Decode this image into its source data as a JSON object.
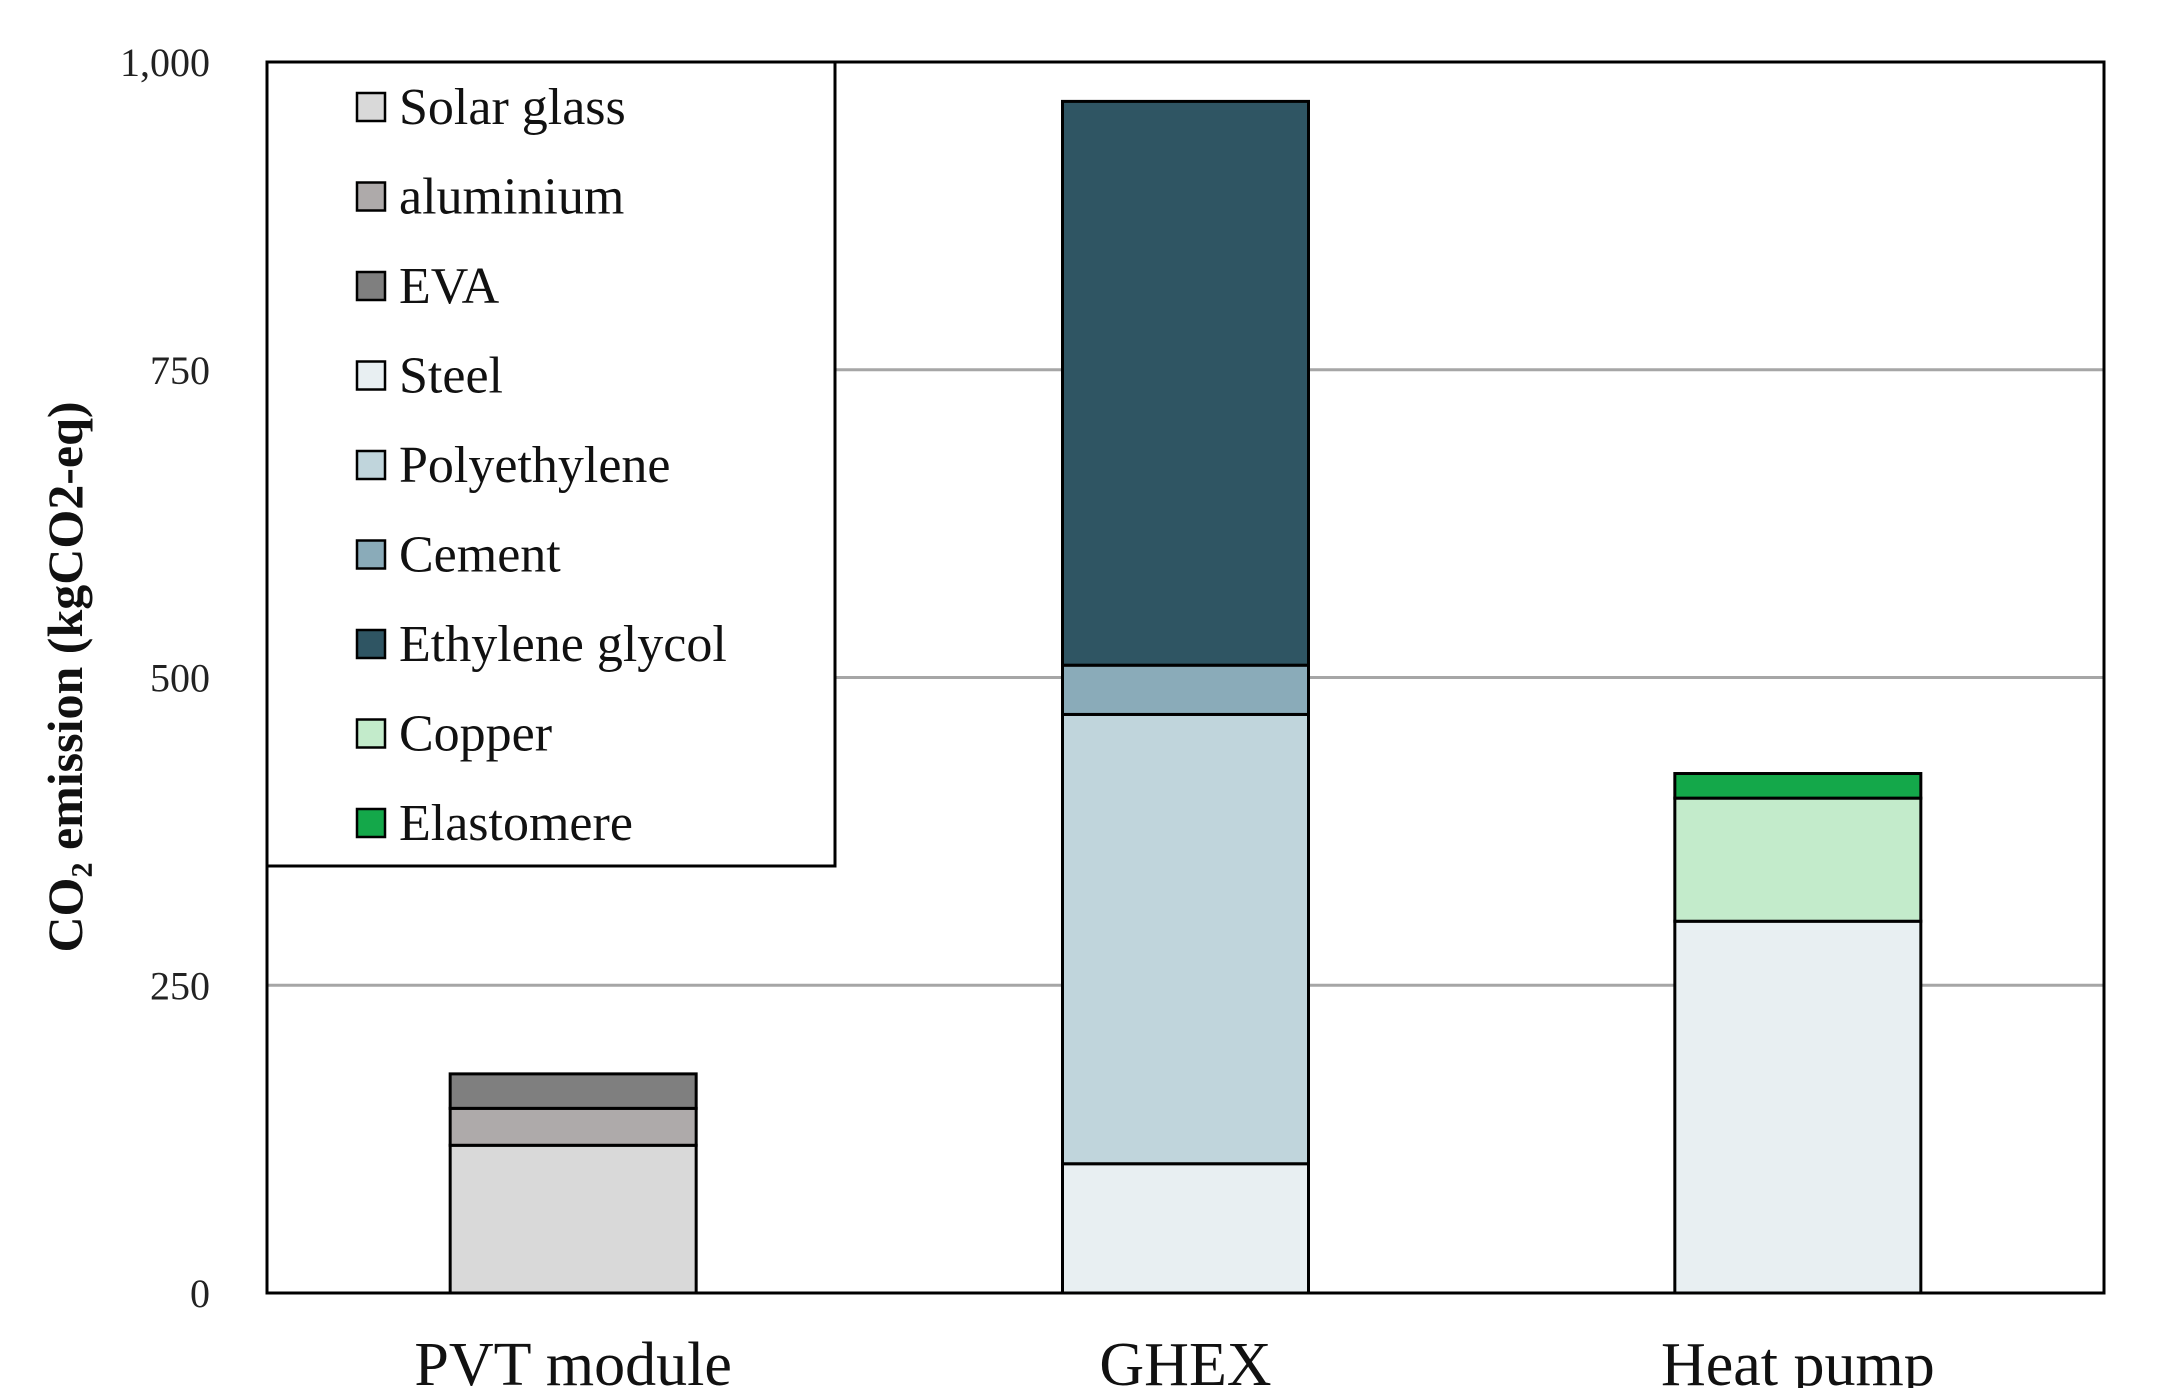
{
  "chart_data": {
    "type": "bar",
    "stacked": true,
    "categories": [
      "PVT module",
      "GHEX",
      "Heat pump"
    ],
    "ylabel": "CO₂ emission (kgCO2-eq)",
    "ylim": [
      0,
      1000
    ],
    "yticks": [
      0,
      250,
      500,
      750,
      1000
    ],
    "ytick_labels": [
      "0",
      "250",
      "500",
      "750",
      "1,000"
    ],
    "grid": true,
    "legend_position": "top-left",
    "series": [
      {
        "name": "Solar glass",
        "color": "#d9d9d9",
        "values": [
          120,
          0,
          0
        ]
      },
      {
        "name": "aluminium",
        "color": "#aeaaaa",
        "values": [
          30,
          0,
          0
        ]
      },
      {
        "name": "EVA",
        "color": "#7f7f7f",
        "values": [
          28,
          0,
          0
        ]
      },
      {
        "name": "Steel",
        "color": "#e8eff2",
        "values": [
          0,
          105,
          302
        ]
      },
      {
        "name": "Polyethylene",
        "color": "#c0d5dc",
        "values": [
          0,
          365,
          0
        ]
      },
      {
        "name": "Cement",
        "color": "#8aabb9",
        "values": [
          0,
          40,
          0
        ]
      },
      {
        "name": "Ethylene glycol",
        "color": "#2f5563",
        "values": [
          0,
          458,
          0
        ]
      },
      {
        "name": "Copper",
        "color": "#c3ebcb",
        "values": [
          0,
          0,
          100
        ]
      },
      {
        "name": "Elastomere",
        "color": "#14a84a",
        "values": [
          0,
          0,
          20
        ]
      }
    ]
  }
}
